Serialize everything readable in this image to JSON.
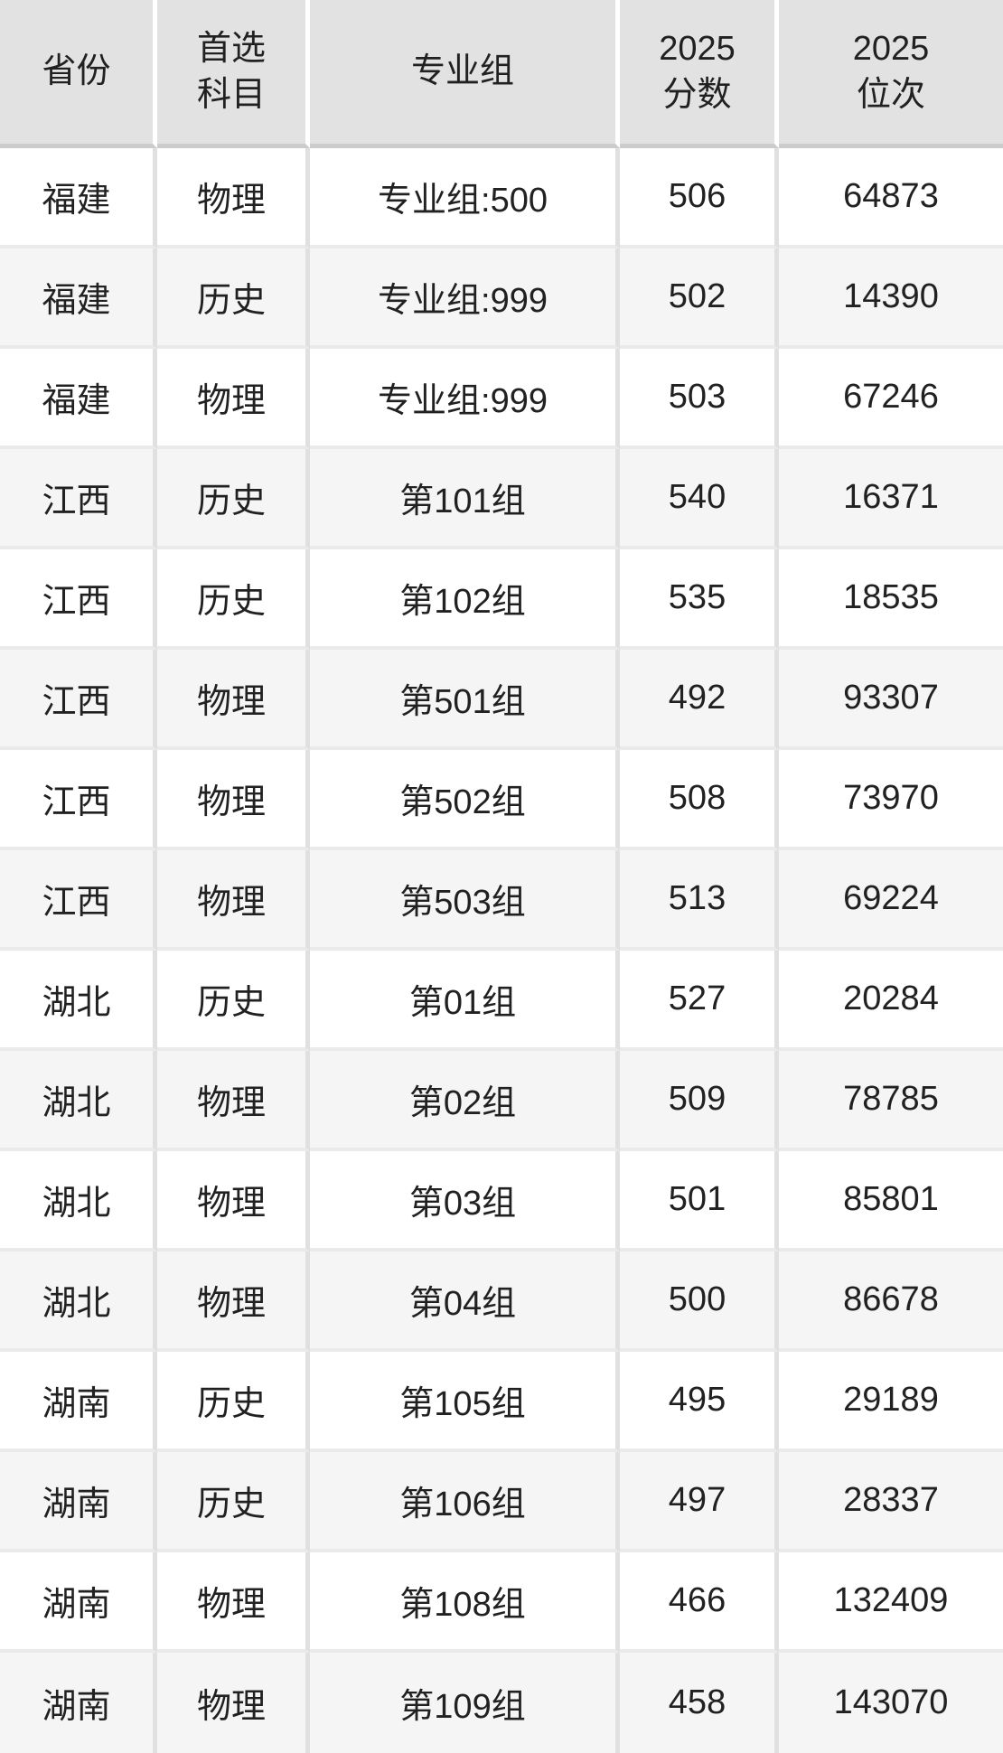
{
  "colors": {
    "header_bg": "#e2e2e2",
    "header_divider": "#cccccc",
    "header_gap": "#ffffff",
    "row_bg": "#ffffff",
    "row_alt_bg": "#f5f5f5",
    "column_grid_line": "#e0e0e0",
    "row_divider": "#eaeaea",
    "text": "#212121"
  },
  "chart_data": {
    "type": "table",
    "columns": [
      "省份",
      "首选科目",
      "专业组",
      "2025分数",
      "2025位次"
    ],
    "header_display": [
      "省份",
      "首选\n科目",
      "专业组",
      "2025\n分数",
      "2025\n位次"
    ],
    "rows": [
      [
        "福建",
        "物理",
        "专业组:500",
        506,
        64873
      ],
      [
        "福建",
        "历史",
        "专业组:999",
        502,
        14390
      ],
      [
        "福建",
        "物理",
        "专业组:999",
        503,
        67246
      ],
      [
        "江西",
        "历史",
        "第101组",
        540,
        16371
      ],
      [
        "江西",
        "历史",
        "第102组",
        535,
        18535
      ],
      [
        "江西",
        "物理",
        "第501组",
        492,
        93307
      ],
      [
        "江西",
        "物理",
        "第502组",
        508,
        73970
      ],
      [
        "江西",
        "物理",
        "第503组",
        513,
        69224
      ],
      [
        "湖北",
        "历史",
        "第01组",
        527,
        20284
      ],
      [
        "湖北",
        "物理",
        "第02组",
        509,
        78785
      ],
      [
        "湖北",
        "物理",
        "第03组",
        501,
        85801
      ],
      [
        "湖北",
        "物理",
        "第04组",
        500,
        86678
      ],
      [
        "湖南",
        "历史",
        "第105组",
        495,
        29189
      ],
      [
        "湖南",
        "历史",
        "第106组",
        497,
        28337
      ],
      [
        "湖南",
        "物理",
        "第108组",
        466,
        132409
      ],
      [
        "湖南",
        "物理",
        "第109组",
        458,
        143070
      ]
    ]
  }
}
